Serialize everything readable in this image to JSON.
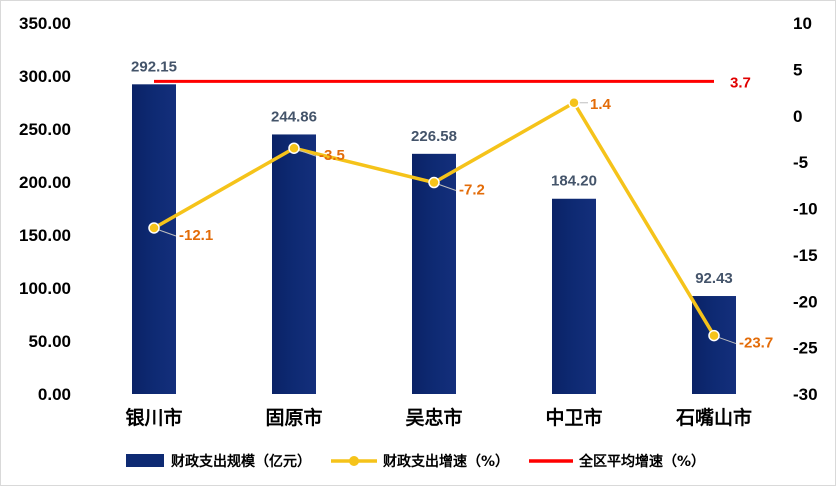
{
  "chart_data": {
    "type": "bar",
    "categories": [
      "银川市",
      "固原市",
      "吴忠市",
      "中卫市",
      "石嘴山市"
    ],
    "series": [
      {
        "name": "财政支出规模（亿元）",
        "type": "bar",
        "axis": "left",
        "color": "#0e2a73",
        "values": [
          292.15,
          244.86,
          226.58,
          184.2,
          92.43
        ],
        "labels": [
          "292.15",
          "244.86",
          "226.58",
          "184.20",
          "92.43"
        ]
      },
      {
        "name": "财政支出增速（%）",
        "type": "line",
        "axis": "right",
        "color": "#f5c31a",
        "values": [
          -12.1,
          -3.5,
          -7.2,
          1.4,
          -23.7
        ],
        "labels": [
          "-12.1",
          "-3.5",
          "-7.2",
          "1.4",
          "-23.7"
        ]
      },
      {
        "name": "全区平均增速（%）",
        "type": "line",
        "axis": "right",
        "color": "#ff0000",
        "value": 3.7,
        "label": "3.7"
      }
    ],
    "y_left": {
      "ylim": [
        0,
        350
      ],
      "ticks": [
        "0.00",
        "50.00",
        "100.00",
        "150.00",
        "200.00",
        "250.00",
        "300.00",
        "350.00"
      ]
    },
    "y_right": {
      "ylim": [
        -30,
        10
      ],
      "ticks": [
        "-30",
        "-25",
        "-20",
        "-15",
        "-10",
        "-5",
        "0",
        "5",
        "10"
      ]
    },
    "grid": false,
    "legend": "bottom"
  }
}
